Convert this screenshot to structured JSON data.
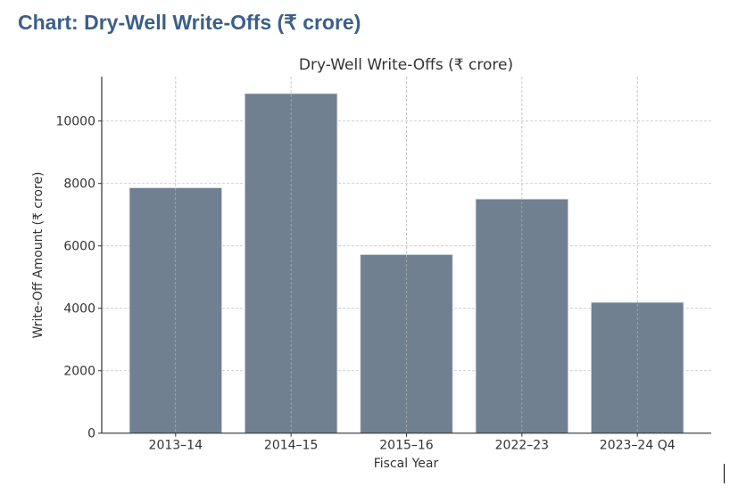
{
  "heading": "Chart: Dry-Well Write-Offs (₹ crore)",
  "chart_data": {
    "type": "bar",
    "title": "Dry-Well Write-Offs (₹ crore)",
    "xlabel": "Fiscal Year",
    "ylabel": "Write-Off Amount (₹ crore)",
    "categories": [
      "2013–14",
      "2014–15",
      "2015–16",
      "2022–23",
      "2023–24 Q4"
    ],
    "values": [
      7860,
      10880,
      5720,
      7500,
      4190
    ],
    "ylim": [
      0,
      11420
    ],
    "yticks": [
      0,
      2000,
      4000,
      6000,
      8000,
      10000
    ],
    "grid": true,
    "bar_color": "#708090"
  }
}
